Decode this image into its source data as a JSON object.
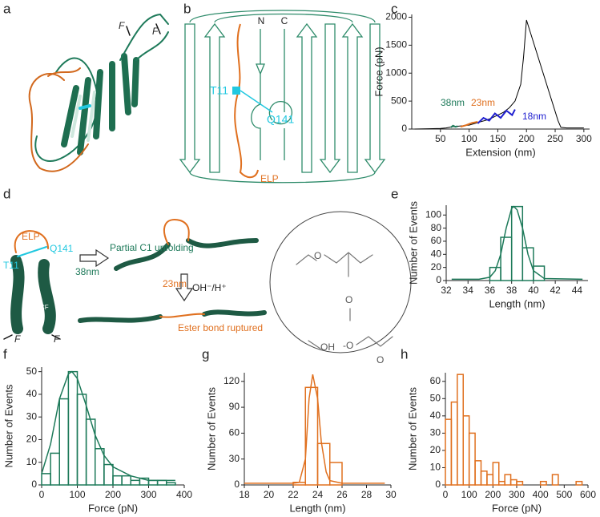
{
  "panel_labels": [
    "a",
    "b",
    "c",
    "d",
    "e",
    "f",
    "g",
    "h"
  ],
  "panel_a": {
    "force_labels": [
      "F",
      "F"
    ]
  },
  "panel_b": {
    "n_term": "N",
    "c_term": "C",
    "t11": "T11",
    "q141": "Q141",
    "elp": "ELP"
  },
  "panel_d": {
    "elp": "ELP",
    "q141": "Q141",
    "t11": "T11",
    "c1": "C1",
    "c1_sub": "CF",
    "force_labels": [
      "F",
      "F"
    ],
    "step1": "Partial C1 unfolding",
    "step1_length": "38nm",
    "step2_length": "23nm",
    "step2_condition": "OH⁻/H⁺",
    "step2": "Ester bond ruptured",
    "chem_labels": [
      "O",
      "O",
      "OH",
      "-O",
      "O"
    ]
  },
  "chart_data": [
    {
      "type": "line",
      "x_label": "Extension (nm)",
      "y_label": "Force (pN)",
      "xlim": [
        0,
        310
      ],
      "ylim": [
        0,
        2050
      ],
      "xticks": [
        50,
        100,
        150,
        200,
        250,
        300
      ],
      "yticks": [
        0,
        500,
        1000,
        1500,
        2000
      ],
      "series": [
        {
          "color": "#000000",
          "x": [
            5,
            30,
            50,
            60,
            70,
            80,
            90,
            100,
            110,
            120,
            130,
            140,
            150,
            160,
            170,
            180,
            190,
            195,
            200,
            255,
            260,
            270,
            300
          ],
          "values": [
            0,
            5,
            10,
            20,
            40,
            50,
            60,
            70,
            100,
            130,
            160,
            200,
            250,
            300,
            380,
            500,
            800,
            1300,
            1950,
            150,
            30,
            20,
            20
          ]
        },
        {
          "color": "#1e7a5a",
          "x": [
            68,
            72,
            76,
            80
          ],
          "values": [
            30,
            60,
            40,
            50
          ]
        },
        {
          "color": "#e0701f",
          "x": [
            85,
            95,
            105,
            115
          ],
          "values": [
            40,
            70,
            110,
            130
          ]
        },
        {
          "color": "#1f1fd0",
          "x": [
            115,
            125,
            135,
            145,
            155,
            165,
            175,
            180
          ],
          "values": [
            100,
            200,
            150,
            280,
            200,
            330,
            250,
            350
          ]
        }
      ],
      "annotations": [
        {
          "text": "38nm",
          "color": "#1e7a5a"
        },
        {
          "text": "23nm",
          "color": "#e0701f"
        },
        {
          "text": "18nm",
          "color": "#1f1fd0"
        }
      ]
    },
    {
      "type": "histogram",
      "x_label": "Length (nm)",
      "y_label": "Number of Events",
      "color": "#1e7a5a",
      "xlim": [
        32,
        45
      ],
      "ylim": [
        0,
        115
      ],
      "xticks": [
        32,
        34,
        36,
        38,
        40,
        42,
        44
      ],
      "yticks": [
        0,
        20,
        40,
        60,
        80,
        100
      ],
      "bins": [
        36,
        37,
        38,
        39,
        40,
        41
      ],
      "values": [
        20,
        66,
        113,
        50,
        22
      ],
      "curve": {
        "x": [
          32.5,
          35,
          36,
          36.5,
          37,
          37.5,
          38,
          38.2,
          38.5,
          39,
          39.5,
          40,
          41,
          44.5
        ],
        "values": [
          2,
          2,
          5,
          15,
          40,
          80,
          110,
          113,
          108,
          80,
          40,
          15,
          3,
          2
        ]
      }
    },
    {
      "type": "histogram",
      "x_label": "Force (pN)",
      "y_label": "Number of Events",
      "color": "#1e7a5a",
      "xlim": [
        0,
        400
      ],
      "ylim": [
        0,
        52
      ],
      "xticks": [
        0,
        100,
        200,
        300,
        400
      ],
      "yticks": [
        0,
        10,
        20,
        30,
        40,
        50
      ],
      "bins": [
        0,
        25,
        50,
        75,
        100,
        125,
        150,
        175,
        200,
        225,
        250,
        275,
        300,
        325,
        350,
        375
      ],
      "values": [
        5,
        14,
        38,
        50,
        40,
        29,
        16,
        9,
        4,
        4,
        2,
        3,
        2,
        2,
        1
      ],
      "curve": {
        "x": [
          0,
          25,
          50,
          75,
          85,
          100,
          125,
          150,
          175,
          200,
          250,
          300,
          350,
          375
        ],
        "values": [
          5,
          18,
          38,
          49,
          50,
          47,
          35,
          22,
          13,
          8,
          4,
          2,
          2,
          2
        ]
      }
    },
    {
      "type": "histogram",
      "x_label": "Length (nm)",
      "y_label": "Number of Events",
      "color": "#e0701f",
      "xlim": [
        18,
        30
      ],
      "ylim": [
        0,
        130
      ],
      "xticks": [
        18,
        20,
        22,
        24,
        26,
        28,
        30
      ],
      "yticks": [
        0,
        30,
        60,
        90,
        120
      ],
      "bins": [
        22,
        23,
        24,
        25,
        26
      ],
      "values": [
        3,
        113,
        48,
        26
      ],
      "curve": {
        "x": [
          18,
          22,
          22.5,
          23,
          23.3,
          23.6,
          24,
          24.3,
          24.7,
          25,
          26,
          29.5
        ],
        "values": [
          2,
          2,
          3,
          30,
          100,
          128,
          100,
          50,
          15,
          5,
          2,
          2
        ]
      }
    },
    {
      "type": "histogram",
      "x_label": "Force (pN)",
      "y_label": "Number of Events",
      "color": "#e0701f",
      "xlim": [
        0,
        600
      ],
      "ylim": [
        0,
        65
      ],
      "xticks": [
        0,
        100,
        200,
        300,
        400,
        500,
        600
      ],
      "yticks": [
        0,
        10,
        20,
        30,
        40,
        50,
        60
      ],
      "bins": [
        0,
        25,
        50,
        75,
        100,
        125,
        150,
        175,
        200,
        225,
        250,
        275,
        300,
        325,
        350,
        375,
        400,
        425,
        450,
        475,
        500,
        525,
        550,
        575
      ],
      "values": [
        38,
        48,
        64,
        40,
        30,
        14,
        8,
        6,
        13,
        2,
        6,
        3,
        2,
        0,
        0,
        0,
        2,
        0,
        6,
        0,
        0,
        0,
        2
      ]
    }
  ]
}
